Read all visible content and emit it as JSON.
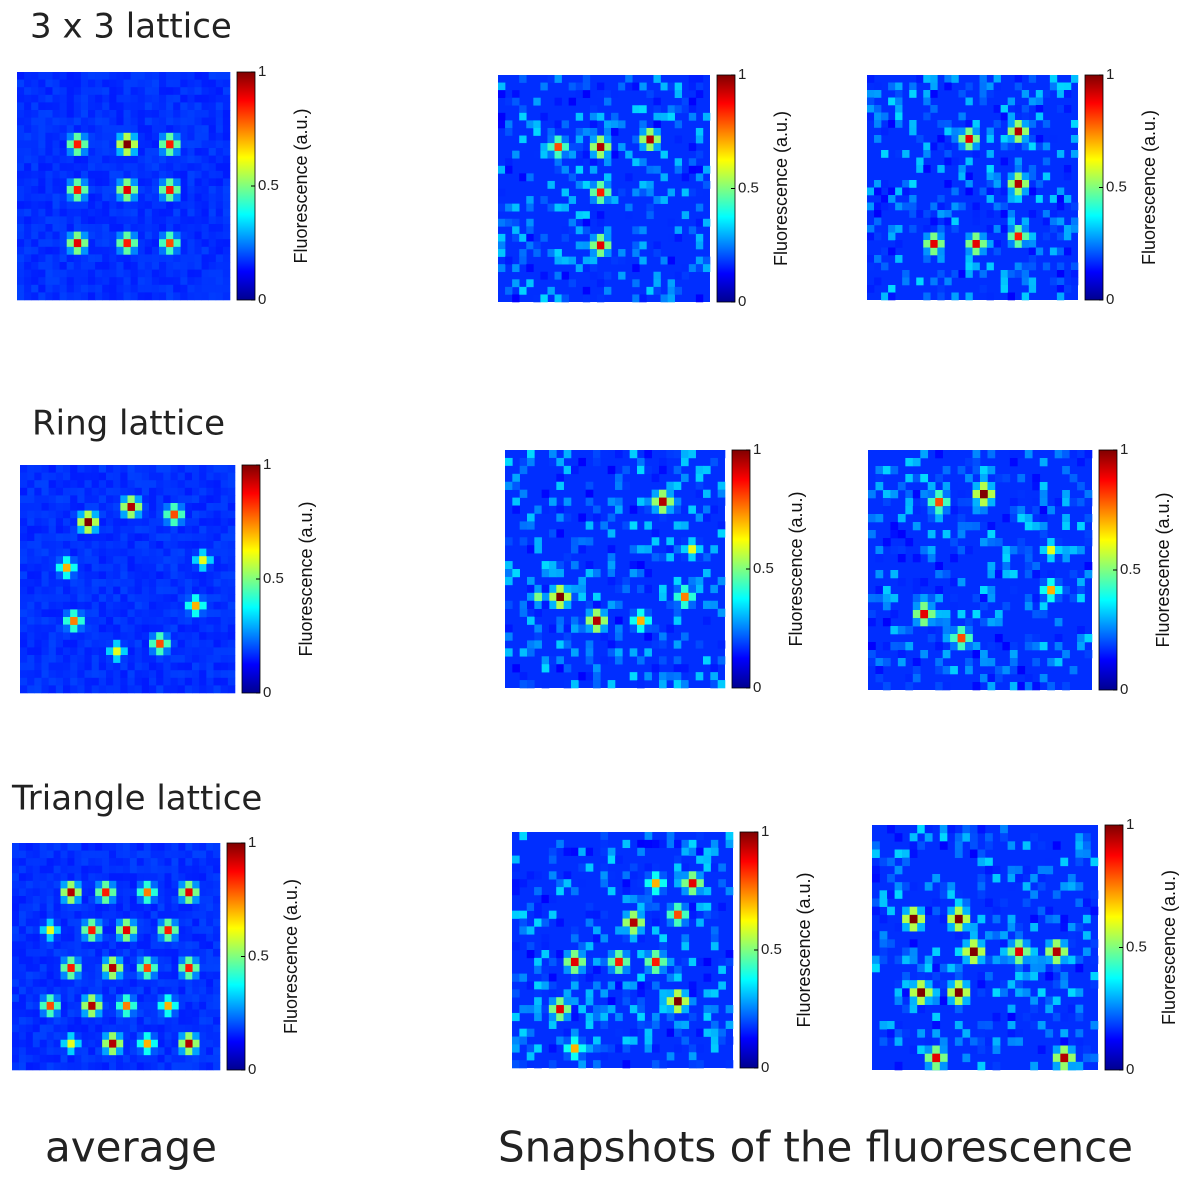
{
  "rows": [
    {
      "label": "3 x 3 lattice",
      "images": [
        {
          "spots": [
            [
              8.2,
              9,
              0.85
            ],
            [
              15,
              9,
              1
            ],
            [
              21.9,
              9,
              0.85
            ],
            [
              8.2,
              15.5,
              0.85
            ],
            [
              15,
              15.5,
              0.9
            ],
            [
              21.9,
              15.5,
              0.85
            ],
            [
              8.2,
              22,
              0.9
            ],
            [
              15,
              22,
              0.85
            ],
            [
              21.9,
              22,
              0.8
            ]
          ]
        },
        {
          "spots": [
            [
              8.3,
              9.3,
              0.8
            ],
            [
              14.9,
              9.3,
              0.95
            ],
            [
              21.7,
              8.2,
              0.95
            ],
            [
              14.9,
              15.2,
              0.85
            ],
            [
              14.9,
              22.5,
              0.9
            ]
          ]
        },
        {
          "spots": [
            [
              14.6,
              8.7,
              0.9
            ],
            [
              21.4,
              7.6,
              0.95
            ],
            [
              21.4,
              14.7,
              0.95
            ],
            [
              9,
              22.4,
              0.9
            ],
            [
              15.4,
              22.4,
              0.9
            ],
            [
              21.8,
              21.3,
              0.85
            ]
          ]
        }
      ]
    },
    {
      "label": "Ring lattice",
      "images": [
        {
          "spots": [
            [
              9.8,
              7.6,
              1
            ],
            [
              15.6,
              5.7,
              0.95
            ],
            [
              21.8,
              6.6,
              0.8
            ],
            [
              6.7,
              13.7,
              0.7
            ],
            [
              25.5,
              12.5,
              0.6
            ],
            [
              7.7,
              20.3,
              0.75
            ],
            [
              24.1,
              18.4,
              0.7
            ],
            [
              13,
              24.1,
              0.6
            ],
            [
              19.3,
              23.7,
              0.8
            ]
          ]
        },
        {
          "spots": [
            [
              21.5,
              6.3,
              0.95
            ],
            [
              25,
              12.6,
              0.6
            ],
            [
              24,
              18.7,
              0.75
            ],
            [
              7.8,
              18,
              1
            ],
            [
              12.7,
              21.8,
              0.95
            ],
            [
              18.8,
              21.2,
              0.7
            ],
            [
              4.8,
              18.7,
              0.5
            ]
          ]
        },
        {
          "spots": [
            [
              9.6,
              6.9,
              0.8
            ],
            [
              15.7,
              5.4,
              1
            ],
            [
              24.8,
              12.5,
              0.6
            ],
            [
              24.4,
              17.5,
              0.7
            ],
            [
              7.2,
              20,
              0.9
            ],
            [
              12.7,
              23.8,
              0.8
            ]
          ]
        }
      ]
    },
    {
      "label": "Triangle lattice",
      "images": [
        {
          "spots": [
            [
              8.4,
              6.6,
              0.95
            ],
            [
              13.8,
              6.6,
              0.85
            ],
            [
              19.5,
              6.6,
              0.75
            ],
            [
              25,
              6.6,
              0.9
            ],
            [
              5.8,
              11.5,
              0.6
            ],
            [
              11.2,
              11.5,
              0.85
            ],
            [
              16.7,
              11.5,
              0.9
            ],
            [
              22.1,
              11.5,
              0.85
            ],
            [
              8.7,
              16.8,
              0.85
            ],
            [
              14.1,
              16.8,
              0.95
            ],
            [
              19.6,
              16.8,
              0.8
            ],
            [
              25,
              16.8,
              0.85
            ],
            [
              5.8,
              21.4,
              0.8
            ],
            [
              11.5,
              21.4,
              0.95
            ],
            [
              16.7,
              21.4,
              0.75
            ],
            [
              22.5,
              21.4,
              0.7
            ],
            [
              8.7,
              26.3,
              0.6
            ],
            [
              14.6,
              26.3,
              0.95
            ],
            [
              19.9,
              26.3,
              0.7
            ],
            [
              25.2,
              26.3,
              0.95
            ]
          ]
        },
        {
          "spots": [
            [
              19.4,
              6.4,
              0.7
            ],
            [
              24.6,
              6.7,
              0.9
            ],
            [
              16.3,
              11.4,
              0.95
            ],
            [
              22.1,
              10.9,
              0.8
            ],
            [
              8.6,
              16.9,
              0.9
            ],
            [
              14.3,
              16.9,
              0.85
            ],
            [
              19,
              16.9,
              0.85
            ],
            [
              22.4,
              21.4,
              1
            ],
            [
              6,
              22.1,
              0.9
            ],
            [
              8.6,
              27.1,
              0.7
            ]
          ]
        },
        {
          "spots": [
            [
              5.7,
              11.6,
              1
            ],
            [
              11.4,
              11.6,
              1
            ],
            [
              13.7,
              15.9,
              1
            ],
            [
              19.4,
              15.9,
              0.9
            ],
            [
              24.7,
              15.9,
              0.95
            ],
            [
              6.1,
              20.8,
              1
            ],
            [
              11.4,
              20.8,
              1
            ],
            [
              8.8,
              28.8,
              0.9
            ],
            [
              25,
              28.5,
              0.95
            ]
          ]
        }
      ]
    }
  ],
  "colorbar": {
    "label": "Fluorescence (a.u.)",
    "ticks": [
      0,
      0.5,
      1
    ]
  },
  "captions": [
    "average",
    "Snapshots of the fluorescence"
  ]
}
